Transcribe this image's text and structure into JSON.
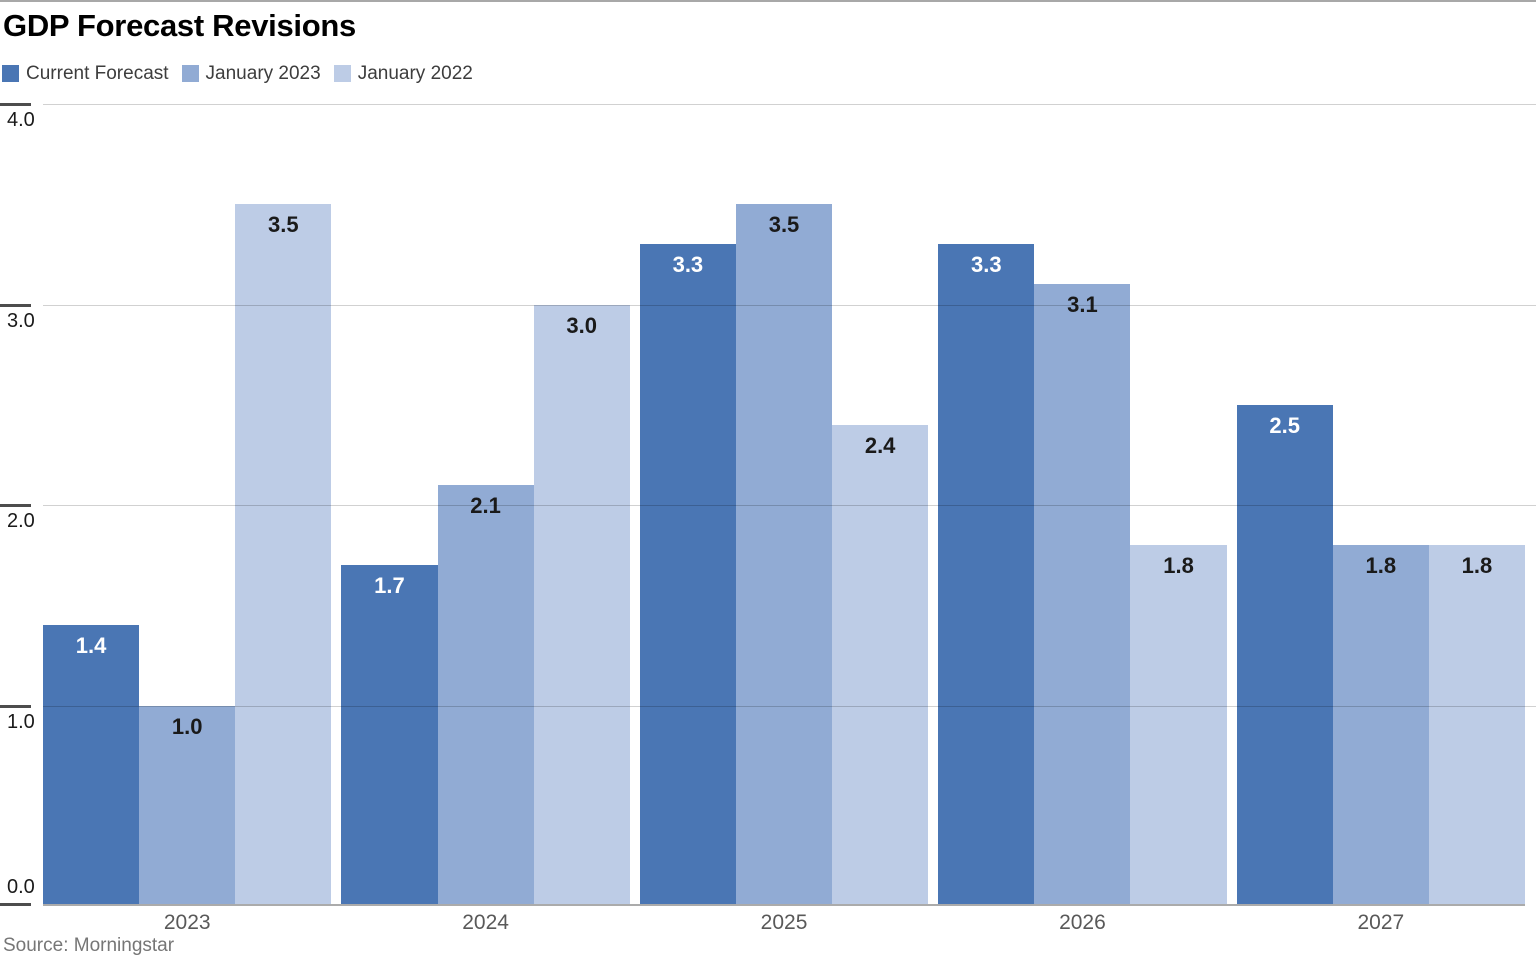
{
  "title": "GDP Forecast Revisions",
  "source": "Source: Morningstar",
  "chart_data": {
    "type": "bar",
    "title": "GDP Forecast Revisions",
    "categories": [
      "2023",
      "2024",
      "2025",
      "2026",
      "2027"
    ],
    "series": [
      {
        "name": "Current Forecast",
        "color": "#4A76B4",
        "label_color": "#FFFFFF",
        "values": [
          1.4,
          1.7,
          3.3,
          3.3,
          2.5
        ]
      },
      {
        "name": "January 2023",
        "color": "#91ABD4",
        "label_color": "#1A1A1A",
        "values": [
          1.0,
          2.1,
          3.5,
          3.1,
          1.8
        ]
      },
      {
        "name": "January 2022",
        "color": "#BDCCE6",
        "label_color": "#1A1A1A",
        "values": [
          3.5,
          3.0,
          2.4,
          1.8,
          1.8
        ]
      }
    ],
    "xlabel": "",
    "ylabel": "",
    "ylim": [
      0,
      4
    ],
    "yticks": [
      {
        "label": "4.0",
        "value": 4.0
      },
      {
        "label": "3.0",
        "value": 3.0
      },
      {
        "label": "2.0",
        "value": 2.0
      },
      {
        "label": "1.0",
        "value": 1.0
      },
      {
        "label": "0.0",
        "value": 0.0
      }
    ],
    "grid": true,
    "value_labels": true,
    "legend_position": "top-left"
  },
  "colors": {
    "top_border": "#A8A8A8",
    "title": "#000000",
    "legend_text": "#3D3D3D",
    "gridline": "rgba(0,0,0,0.18)",
    "baseline": "#ABABAB",
    "tick": "#4D4D4D",
    "axis_label": "#1A1A1A",
    "category_label": "#595959",
    "source": "#767676"
  }
}
